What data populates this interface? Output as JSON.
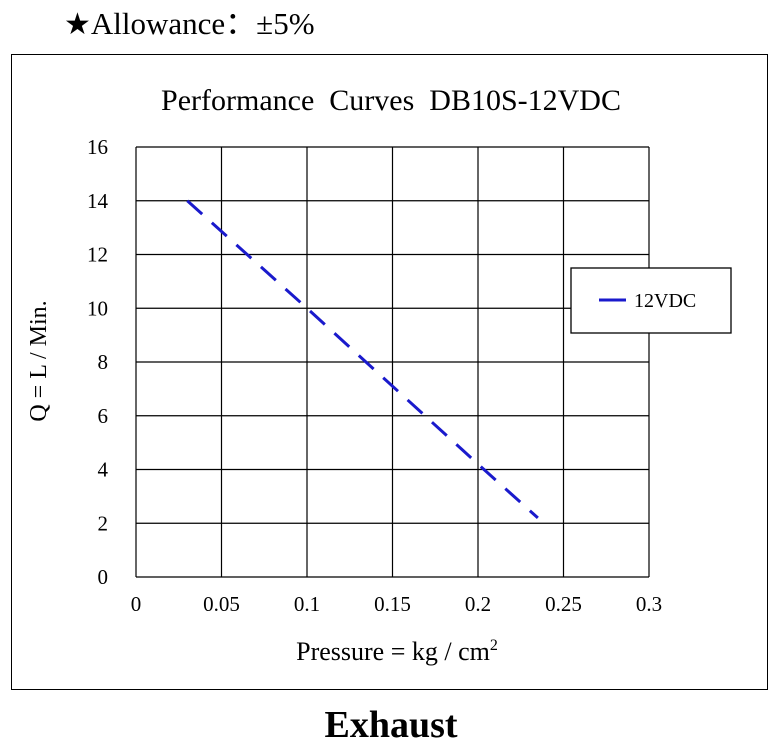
{
  "header": {
    "star": "★",
    "allowance_text": "Allowance：±5%"
  },
  "footer": {
    "label": "Exhaust"
  },
  "chart_data": {
    "type": "line",
    "title": "Performance  Curves  DB10S-12VDC",
    "xlabel": "Pressure = kg / cm",
    "xlabel_superscript": "2",
    "ylabel": "Q = L / Min.",
    "xlim": [
      0,
      0.3
    ],
    "ylim": [
      0,
      16
    ],
    "x_ticks": [
      0,
      0.05,
      0.1,
      0.15,
      0.2,
      0.25,
      0.3
    ],
    "x_tick_labels": [
      "0",
      "0.05",
      "0.1",
      "0.15",
      "0.2",
      "0.25",
      "0.3"
    ],
    "y_ticks": [
      0,
      2,
      4,
      6,
      8,
      10,
      12,
      14,
      16
    ],
    "y_tick_labels": [
      "0",
      "2",
      "4",
      "6",
      "8",
      "10",
      "12",
      "14",
      "16"
    ],
    "grid": true,
    "legend_position": "right",
    "series": [
      {
        "name": "12VDC",
        "color": "#1a1acc",
        "line_style": "dashed",
        "x": [
          0.03,
          0.1,
          0.2,
          0.235
        ],
        "y": [
          14,
          10,
          4.2,
          2.2
        ]
      }
    ]
  }
}
